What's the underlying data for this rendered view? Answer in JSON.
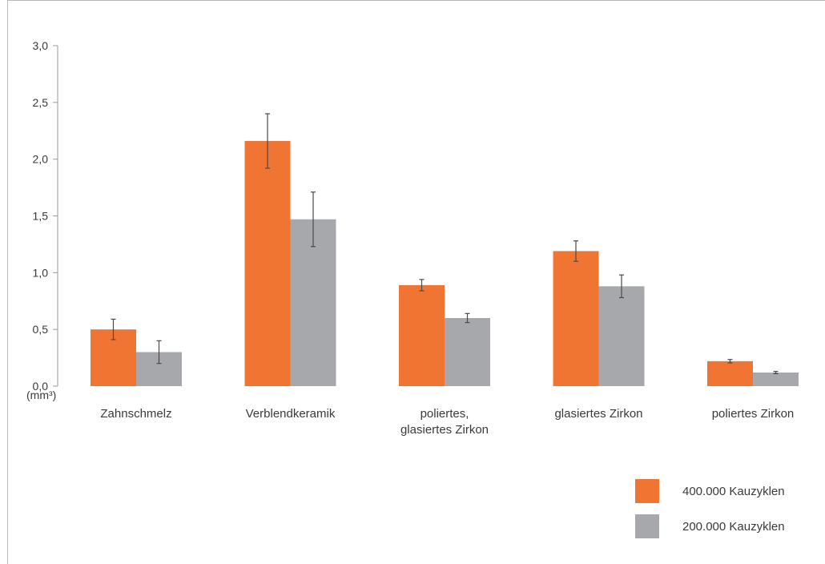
{
  "chart_data": {
    "type": "bar",
    "unit_label": "(mm³)",
    "ylim": [
      0,
      3.0
    ],
    "yticks": [
      "0,0",
      "0,5",
      "1,0",
      "1,5",
      "2,0",
      "2,5",
      "3,0"
    ],
    "categories": [
      [
        "Zahnschmelz"
      ],
      [
        "Verblendkeramik"
      ],
      [
        "poliertes,",
        "glasiertes Zirkon"
      ],
      [
        "glasiertes Zirkon"
      ],
      [
        "poliertes Zirkon"
      ]
    ],
    "series": [
      {
        "name": "400.000 Kauzyklen",
        "color": "#f07532",
        "values": [
          0.5,
          2.16,
          0.89,
          1.19,
          0.22
        ],
        "errors": [
          0.09,
          0.24,
          0.05,
          0.09,
          0.015
        ]
      },
      {
        "name": "200.000 Kauzyklen",
        "color": "#a7a8ab",
        "values": [
          0.3,
          1.47,
          0.6,
          0.88,
          0.12
        ],
        "errors": [
          0.1,
          0.24,
          0.04,
          0.1,
          0.01
        ]
      }
    ],
    "legend_position": "bottom-right",
    "grid": false
  }
}
